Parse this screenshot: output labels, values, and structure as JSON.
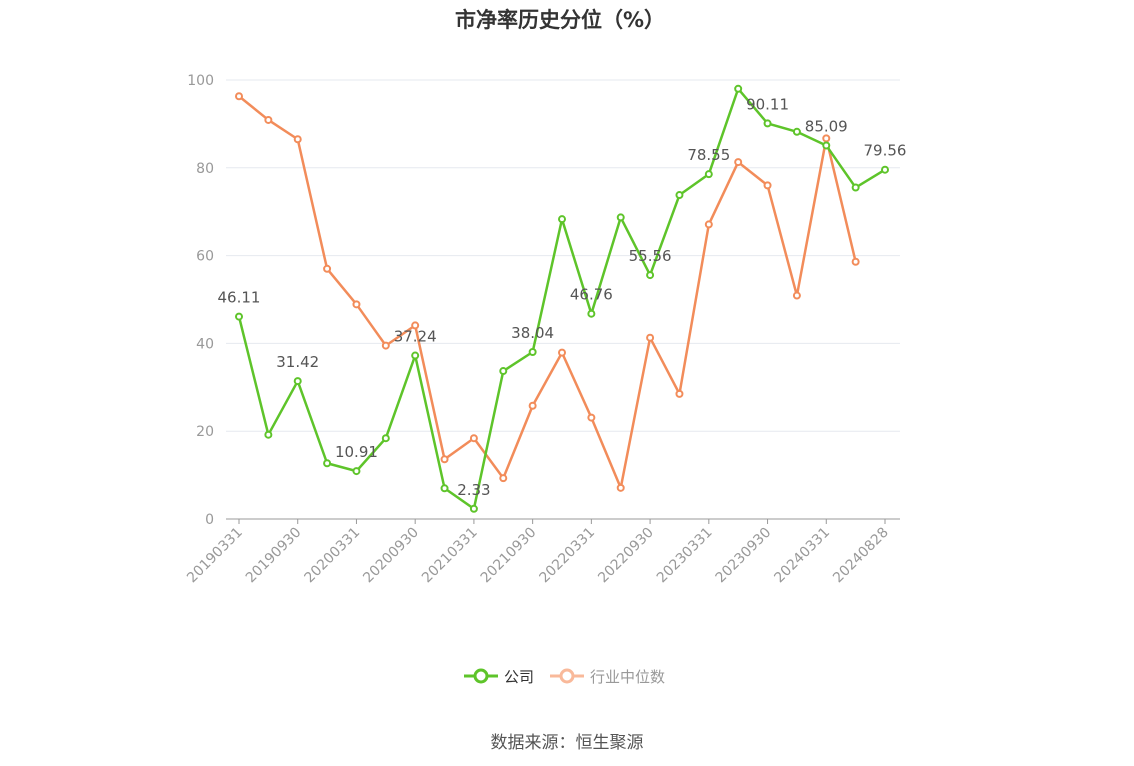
{
  "chart_data": {
    "type": "line",
    "title": "市净率历史分位（%）",
    "xlabel": "",
    "ylabel": "",
    "ylim": [
      0,
      100
    ],
    "yticks": [
      0,
      20,
      40,
      60,
      80,
      100
    ],
    "grid": true,
    "legend_position": "bottom",
    "x": [
      "20190331",
      "20190630",
      "20190930",
      "20191231",
      "20200331",
      "20200630",
      "20200930",
      "20201231",
      "20210331",
      "20210630",
      "20210930",
      "20211231",
      "20220331",
      "20220630",
      "20220930",
      "20221231",
      "20230331",
      "20230630",
      "20230930",
      "20231231",
      "20240331",
      "20240630",
      "20240828"
    ],
    "x_tick_labels": [
      "20190331",
      "20190930",
      "20200331",
      "20200930",
      "20210331",
      "20210930",
      "20220331",
      "20220930",
      "20230331",
      "20230930",
      "20240331",
      "20240828"
    ],
    "series": [
      {
        "name": "公司",
        "color": "#5ec42a",
        "values": [
          46.11,
          19.2,
          31.42,
          12.7,
          10.91,
          18.4,
          37.24,
          7.0,
          2.33,
          33.7,
          38.04,
          68.3,
          46.76,
          68.7,
          55.56,
          73.8,
          78.55,
          98.0,
          90.11,
          88.2,
          85.09,
          75.5,
          79.56
        ]
      },
      {
        "name": "行业中位数",
        "color": "#f28c5a",
        "values": [
          96.3,
          90.9,
          86.5,
          57.0,
          48.9,
          39.5,
          44.1,
          13.6,
          18.4,
          9.3,
          25.8,
          37.9,
          23.1,
          7.1,
          41.3,
          28.5,
          67.1,
          81.3,
          76.0,
          50.9,
          86.7,
          58.6,
          null
        ]
      }
    ],
    "data_labels": [
      {
        "index": 0,
        "text": "46.11"
      },
      {
        "index": 2,
        "text": "31.42"
      },
      {
        "index": 4,
        "text": "10.91"
      },
      {
        "index": 6,
        "text": "37.24"
      },
      {
        "index": 8,
        "text": "2.33"
      },
      {
        "index": 10,
        "text": "38.04"
      },
      {
        "index": 12,
        "text": "46.76"
      },
      {
        "index": 14,
        "text": "55.56"
      },
      {
        "index": 16,
        "text": "78.55"
      },
      {
        "index": 18,
        "text": "90.11"
      },
      {
        "index": 20,
        "text": "85.09"
      },
      {
        "index": 22,
        "text": "79.56"
      }
    ]
  },
  "legend": {
    "items": [
      {
        "label": "公司",
        "color": "#5ec42a",
        "text_color": "#333333"
      },
      {
        "label": "行业中位数",
        "color": "#f9b99a",
        "text_color": "#999999"
      }
    ]
  },
  "source": "数据来源：恒生聚源"
}
